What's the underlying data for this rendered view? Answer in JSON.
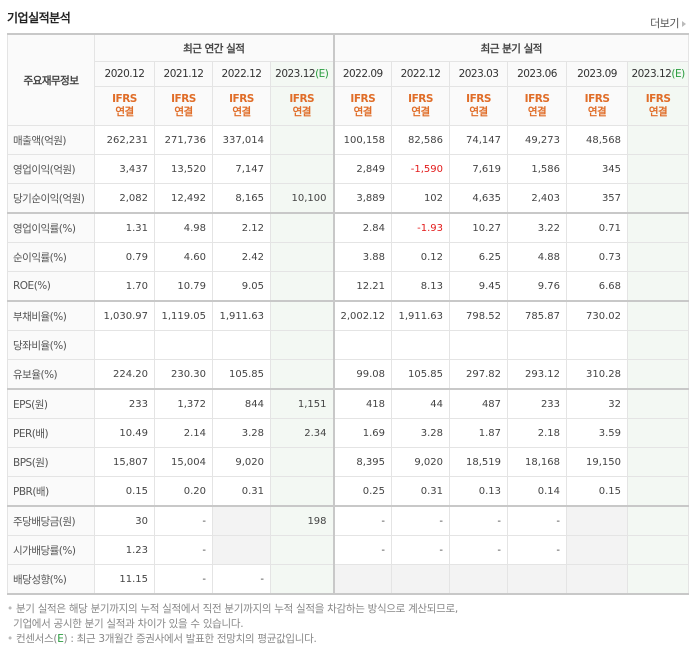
{
  "header": {
    "title": "기업실적분석",
    "more_label": "더보기"
  },
  "table": {
    "row_header_label": "주요재무정보",
    "groups": {
      "annual": "최근 연간 실적",
      "quarterly": "최근 분기 실적"
    },
    "periods": [
      "2020.12",
      "2021.12",
      "2022.12",
      "2023.12",
      "2022.09",
      "2022.12",
      "2023.03",
      "2023.06",
      "2023.09",
      "2023.12"
    ],
    "estimate_mark": "(E)",
    "basis_line1": "IFRS",
    "basis_line2": "연결",
    "rows": [
      {
        "label": "매출액(억원)",
        "values": [
          "262,231",
          "271,736",
          "337,014",
          "",
          "100,158",
          "82,586",
          "74,147",
          "49,273",
          "48,568",
          ""
        ]
      },
      {
        "label": "영업이익(억원)",
        "values": [
          "3,437",
          "13,520",
          "7,147",
          "",
          "2,849",
          "-1,590",
          "7,619",
          "1,586",
          "345",
          ""
        ]
      },
      {
        "label": "당기순이익(억원)",
        "values": [
          "2,082",
          "12,492",
          "8,165",
          "10,100",
          "3,889",
          "102",
          "4,635",
          "2,403",
          "357",
          ""
        ]
      },
      {
        "label": "영업이익률(%)",
        "values": [
          "1.31",
          "4.98",
          "2.12",
          "",
          "2.84",
          "-1.93",
          "10.27",
          "3.22",
          "0.71",
          ""
        ]
      },
      {
        "label": "순이익률(%)",
        "values": [
          "0.79",
          "4.60",
          "2.42",
          "",
          "3.88",
          "0.12",
          "6.25",
          "4.88",
          "0.73",
          ""
        ]
      },
      {
        "label": "ROE(%)",
        "values": [
          "1.70",
          "10.79",
          "9.05",
          "",
          "12.21",
          "8.13",
          "9.45",
          "9.76",
          "6.68",
          ""
        ]
      },
      {
        "label": "부채비율(%)",
        "values": [
          "1,030.97",
          "1,119.05",
          "1,911.63",
          "",
          "2,002.12",
          "1,911.63",
          "798.52",
          "785.87",
          "730.02",
          ""
        ]
      },
      {
        "label": "당좌비율(%)",
        "values": [
          "",
          "",
          "",
          "",
          "",
          "",
          "",
          "",
          "",
          ""
        ]
      },
      {
        "label": "유보율(%)",
        "values": [
          "224.20",
          "230.30",
          "105.85",
          "",
          "99.08",
          "105.85",
          "297.82",
          "293.12",
          "310.28",
          ""
        ]
      },
      {
        "label": "EPS(원)",
        "values": [
          "233",
          "1,372",
          "844",
          "1,151",
          "418",
          "44",
          "487",
          "233",
          "32",
          ""
        ]
      },
      {
        "label": "PER(배)",
        "values": [
          "10.49",
          "2.14",
          "3.28",
          "2.34",
          "1.69",
          "3.28",
          "1.87",
          "2.18",
          "3.59",
          ""
        ]
      },
      {
        "label": "BPS(원)",
        "values": [
          "15,807",
          "15,004",
          "9,020",
          "",
          "8,395",
          "9,020",
          "18,519",
          "18,168",
          "19,150",
          ""
        ]
      },
      {
        "label": "PBR(배)",
        "values": [
          "0.15",
          "0.20",
          "0.31",
          "",
          "0.25",
          "0.31",
          "0.13",
          "0.14",
          "0.15",
          ""
        ]
      },
      {
        "label": "주당배당금(원)",
        "values": [
          "30",
          "-",
          "",
          "198",
          "-",
          "-",
          "-",
          "-",
          "",
          ""
        ]
      },
      {
        "label": "시가배당률(%)",
        "values": [
          "1.23",
          "-",
          "",
          "",
          "-",
          "-",
          "-",
          "-",
          "",
          ""
        ]
      },
      {
        "label": "배당성향(%)",
        "values": [
          "11.15",
          "-",
          "-",
          "",
          "",
          "",
          "",
          "",
          "",
          ""
        ]
      }
    ]
  },
  "notes": {
    "line1": "분기 실적은 해당 분기까지의 누적 실적에서 직전 분기까지의 누적 실적을 차감하는 방식으로 계산되므로,",
    "line2": "기업에서 공시한 분기 실적과 차이가 있을 수 있습니다.",
    "line3_prefix": "컨센서스(",
    "line3_e": "E",
    "line3_suffix": ") : 최근 3개월간 증권사에서 발표한 전망치의 평균값입니다."
  },
  "colors": {
    "ifrs_orange": "#e06d28",
    "negative_red": "#e31b1b",
    "estimate_green": "#2a9d3f",
    "estimate_bg": "#f3f8f3"
  }
}
